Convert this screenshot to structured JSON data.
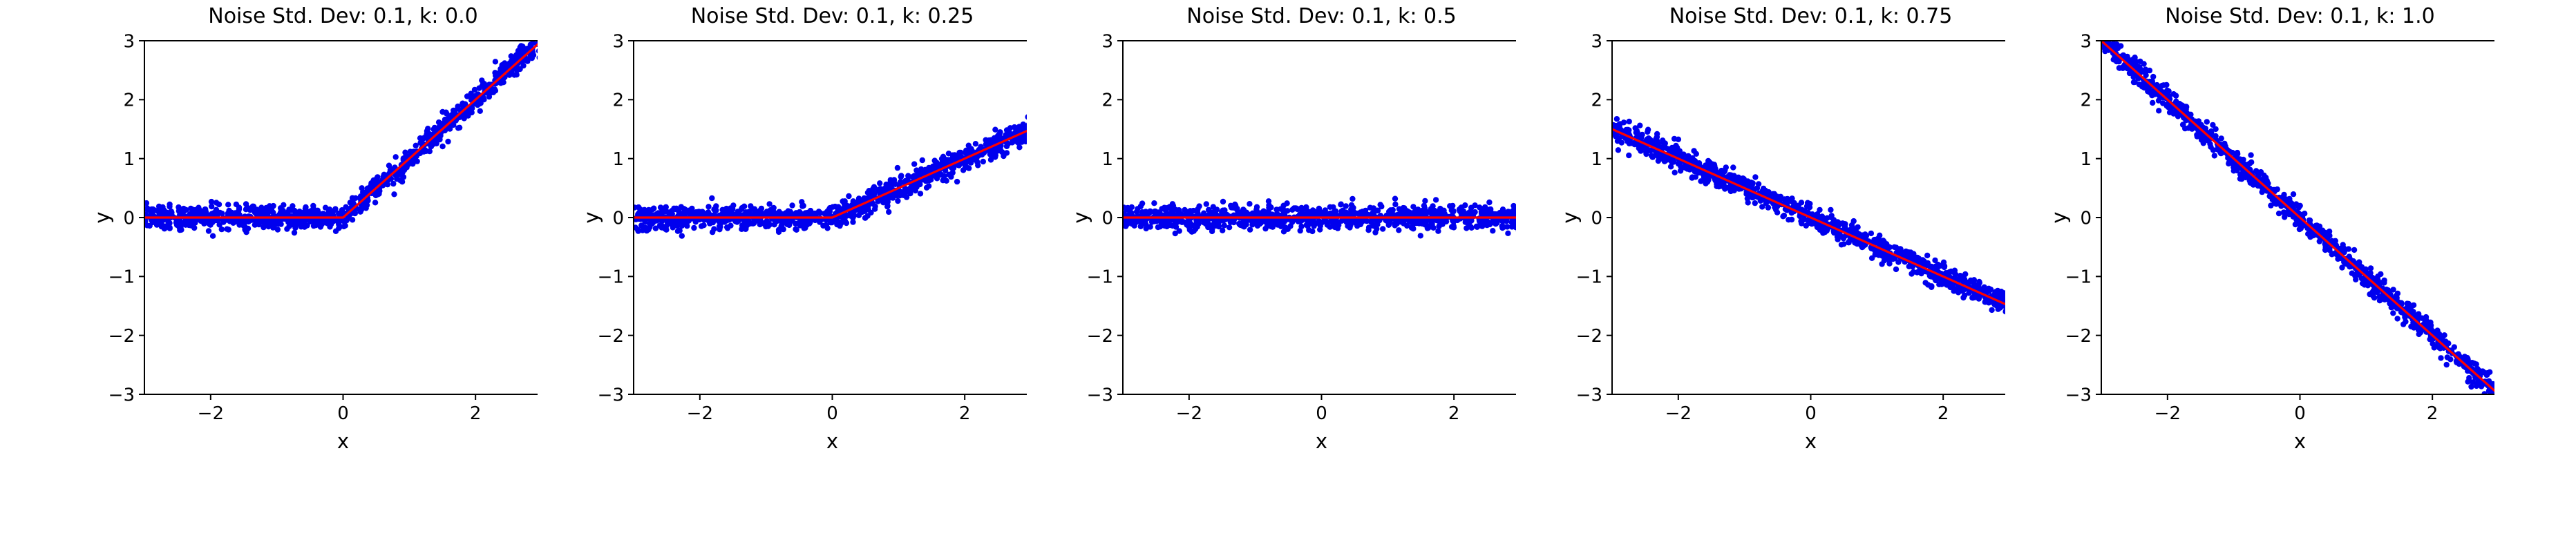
{
  "page": {
    "background": "#ffffff"
  },
  "chart_data": [
    {
      "type": "scatter",
      "title": "Noise Std. Dev: 0.1, k: 0.0",
      "xlabel": "x",
      "ylabel": "y",
      "xlim": [
        -3,
        3
      ],
      "ylim": [
        -3,
        3
      ],
      "xticks": [
        -2,
        0,
        2
      ],
      "yticks": [
        -3,
        -2,
        -1,
        0,
        1,
        2,
        3
      ],
      "grid": false,
      "legend": "none",
      "scatter_color": "#0000ee",
      "line_color": "#ff0000",
      "noise_std": 0.1,
      "n_points": 1000,
      "seed": 11,
      "line_segments": [
        [
          -3,
          0
        ],
        [
          0,
          0
        ],
        [
          3,
          3
        ]
      ]
    },
    {
      "type": "scatter",
      "title": "Noise Std. Dev: 0.1, k: 0.25",
      "xlabel": "x",
      "ylabel": "y",
      "xlim": [
        -3,
        3
      ],
      "ylim": [
        -3,
        3
      ],
      "xticks": [
        -2,
        0,
        2
      ],
      "yticks": [
        -3,
        -2,
        -1,
        0,
        1,
        2,
        3
      ],
      "grid": false,
      "legend": "none",
      "scatter_color": "#0000ee",
      "line_color": "#ff0000",
      "noise_std": 0.1,
      "n_points": 1000,
      "seed": 22,
      "line_segments": [
        [
          -3,
          0
        ],
        [
          0,
          0
        ],
        [
          3,
          1.5
        ]
      ]
    },
    {
      "type": "scatter",
      "title": "Noise Std. Dev: 0.1, k: 0.5",
      "xlabel": "x",
      "ylabel": "y",
      "xlim": [
        -3,
        3
      ],
      "ylim": [
        -3,
        3
      ],
      "xticks": [
        -2,
        0,
        2
      ],
      "yticks": [
        -3,
        -2,
        -1,
        0,
        1,
        2,
        3
      ],
      "grid": false,
      "legend": "none",
      "scatter_color": "#0000ee",
      "line_color": "#ff0000",
      "noise_std": 0.1,
      "n_points": 1000,
      "seed": 33,
      "line_segments": [
        [
          -3,
          0
        ],
        [
          3,
          0
        ]
      ]
    },
    {
      "type": "scatter",
      "title": "Noise Std. Dev: 0.1, k: 0.75",
      "xlabel": "x",
      "ylabel": "y",
      "xlim": [
        -3,
        3
      ],
      "ylim": [
        -3,
        3
      ],
      "xticks": [
        -2,
        0,
        2
      ],
      "yticks": [
        -3,
        -2,
        -1,
        0,
        1,
        2,
        3
      ],
      "grid": false,
      "legend": "none",
      "scatter_color": "#0000ee",
      "line_color": "#ff0000",
      "noise_std": 0.1,
      "n_points": 1000,
      "seed": 44,
      "line_segments": [
        [
          -3,
          1.5
        ],
        [
          3,
          -1.5
        ]
      ]
    },
    {
      "type": "scatter",
      "title": "Noise Std. Dev: 0.1, k: 1.0",
      "xlabel": "x",
      "ylabel": "y",
      "xlim": [
        -3,
        3
      ],
      "ylim": [
        -3,
        3
      ],
      "xticks": [
        -2,
        0,
        2
      ],
      "yticks": [
        -3,
        -2,
        -1,
        0,
        1,
        2,
        3
      ],
      "grid": false,
      "legend": "none",
      "scatter_color": "#0000ee",
      "line_color": "#ff0000",
      "noise_std": 0.1,
      "n_points": 1000,
      "seed": 55,
      "line_segments": [
        [
          -3,
          3
        ],
        [
          3,
          -3
        ]
      ]
    }
  ]
}
